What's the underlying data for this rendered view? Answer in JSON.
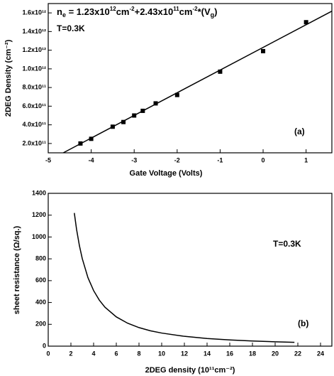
{
  "chart_data": [
    {
      "type": "scatter",
      "x_label": "Gate Voltage (Volts)",
      "y_label": "2DEG Density (cm⁻²)",
      "formula": [
        "n",
        "e",
        " = 1.23x10",
        "12",
        "cm",
        "-2",
        "+2.43x10",
        "11",
        "cm",
        "-2",
        "*(V",
        "g",
        ")"
      ],
      "annotations": [
        "T=0.3K",
        "(a)"
      ],
      "xlim": [
        -5,
        1.6
      ],
      "xticks": [
        -5,
        -4,
        -3,
        -2,
        -1,
        0,
        1
      ],
      "ylim": [
        100000000000,
        1700000000000
      ],
      "yticks": [
        {
          "value": 200000000000,
          "label": "2.0x10¹¹"
        },
        {
          "value": 400000000000,
          "label": "4.0x10¹¹"
        },
        {
          "value": 600000000000,
          "label": "6.0x10¹¹"
        },
        {
          "value": 800000000000,
          "label": "8.0x10¹¹"
        },
        {
          "value": 1000000000000,
          "label": "1.0x10¹²"
        },
        {
          "value": 1200000000000,
          "label": "1.2x10¹²"
        },
        {
          "value": 1400000000000,
          "label": "1.4x10¹²"
        },
        {
          "value": 1600000000000,
          "label": "1.6x10¹²"
        }
      ],
      "series": [
        {
          "mode": "markers",
          "color": "#000000",
          "x": [
            -4.25,
            -4,
            -3.5,
            -3.25,
            -3,
            -2.8,
            -2.5,
            -2,
            -1,
            0,
            1
          ],
          "values": [
            200000000000,
            250000000000,
            380000000000,
            430000000000,
            500000000000,
            550000000000,
            630000000000,
            720000000000,
            970000000000,
            1190000000000,
            1500000000000
          ]
        },
        {
          "mode": "line",
          "color": "#000000",
          "x": [
            -4.65,
            1.6
          ],
          "values": [
            100000000000,
            1618800000000
          ]
        }
      ]
    },
    {
      "type": "line",
      "x_label": "2DEG density (10¹¹cm⁻²)",
      "y_label": "sheet resistance (Ω/sq.)",
      "annotations": [
        "T=0.3K",
        "(b)"
      ],
      "xlim": [
        0,
        25
      ],
      "xticks": [
        0,
        2,
        4,
        6,
        8,
        10,
        12,
        14,
        16,
        18,
        20,
        22,
        24
      ],
      "ylim": [
        0,
        1400
      ],
      "yticks": [
        0,
        200,
        400,
        600,
        800,
        1000,
        1200,
        1400
      ],
      "series": [
        {
          "mode": "line",
          "color": "#000000",
          "x": [
            2.3,
            2.5,
            2.75,
            3,
            3.5,
            4,
            4.5,
            5,
            6,
            7,
            8,
            9,
            10,
            12,
            14,
            16,
            18,
            20,
            21.7
          ],
          "values": [
            1220,
            1069,
            920,
            802,
            628,
            509,
            422,
            357,
            268,
            210,
            170,
            141,
            120,
            90,
            70,
            57,
            47,
            40,
            35
          ]
        }
      ]
    }
  ]
}
